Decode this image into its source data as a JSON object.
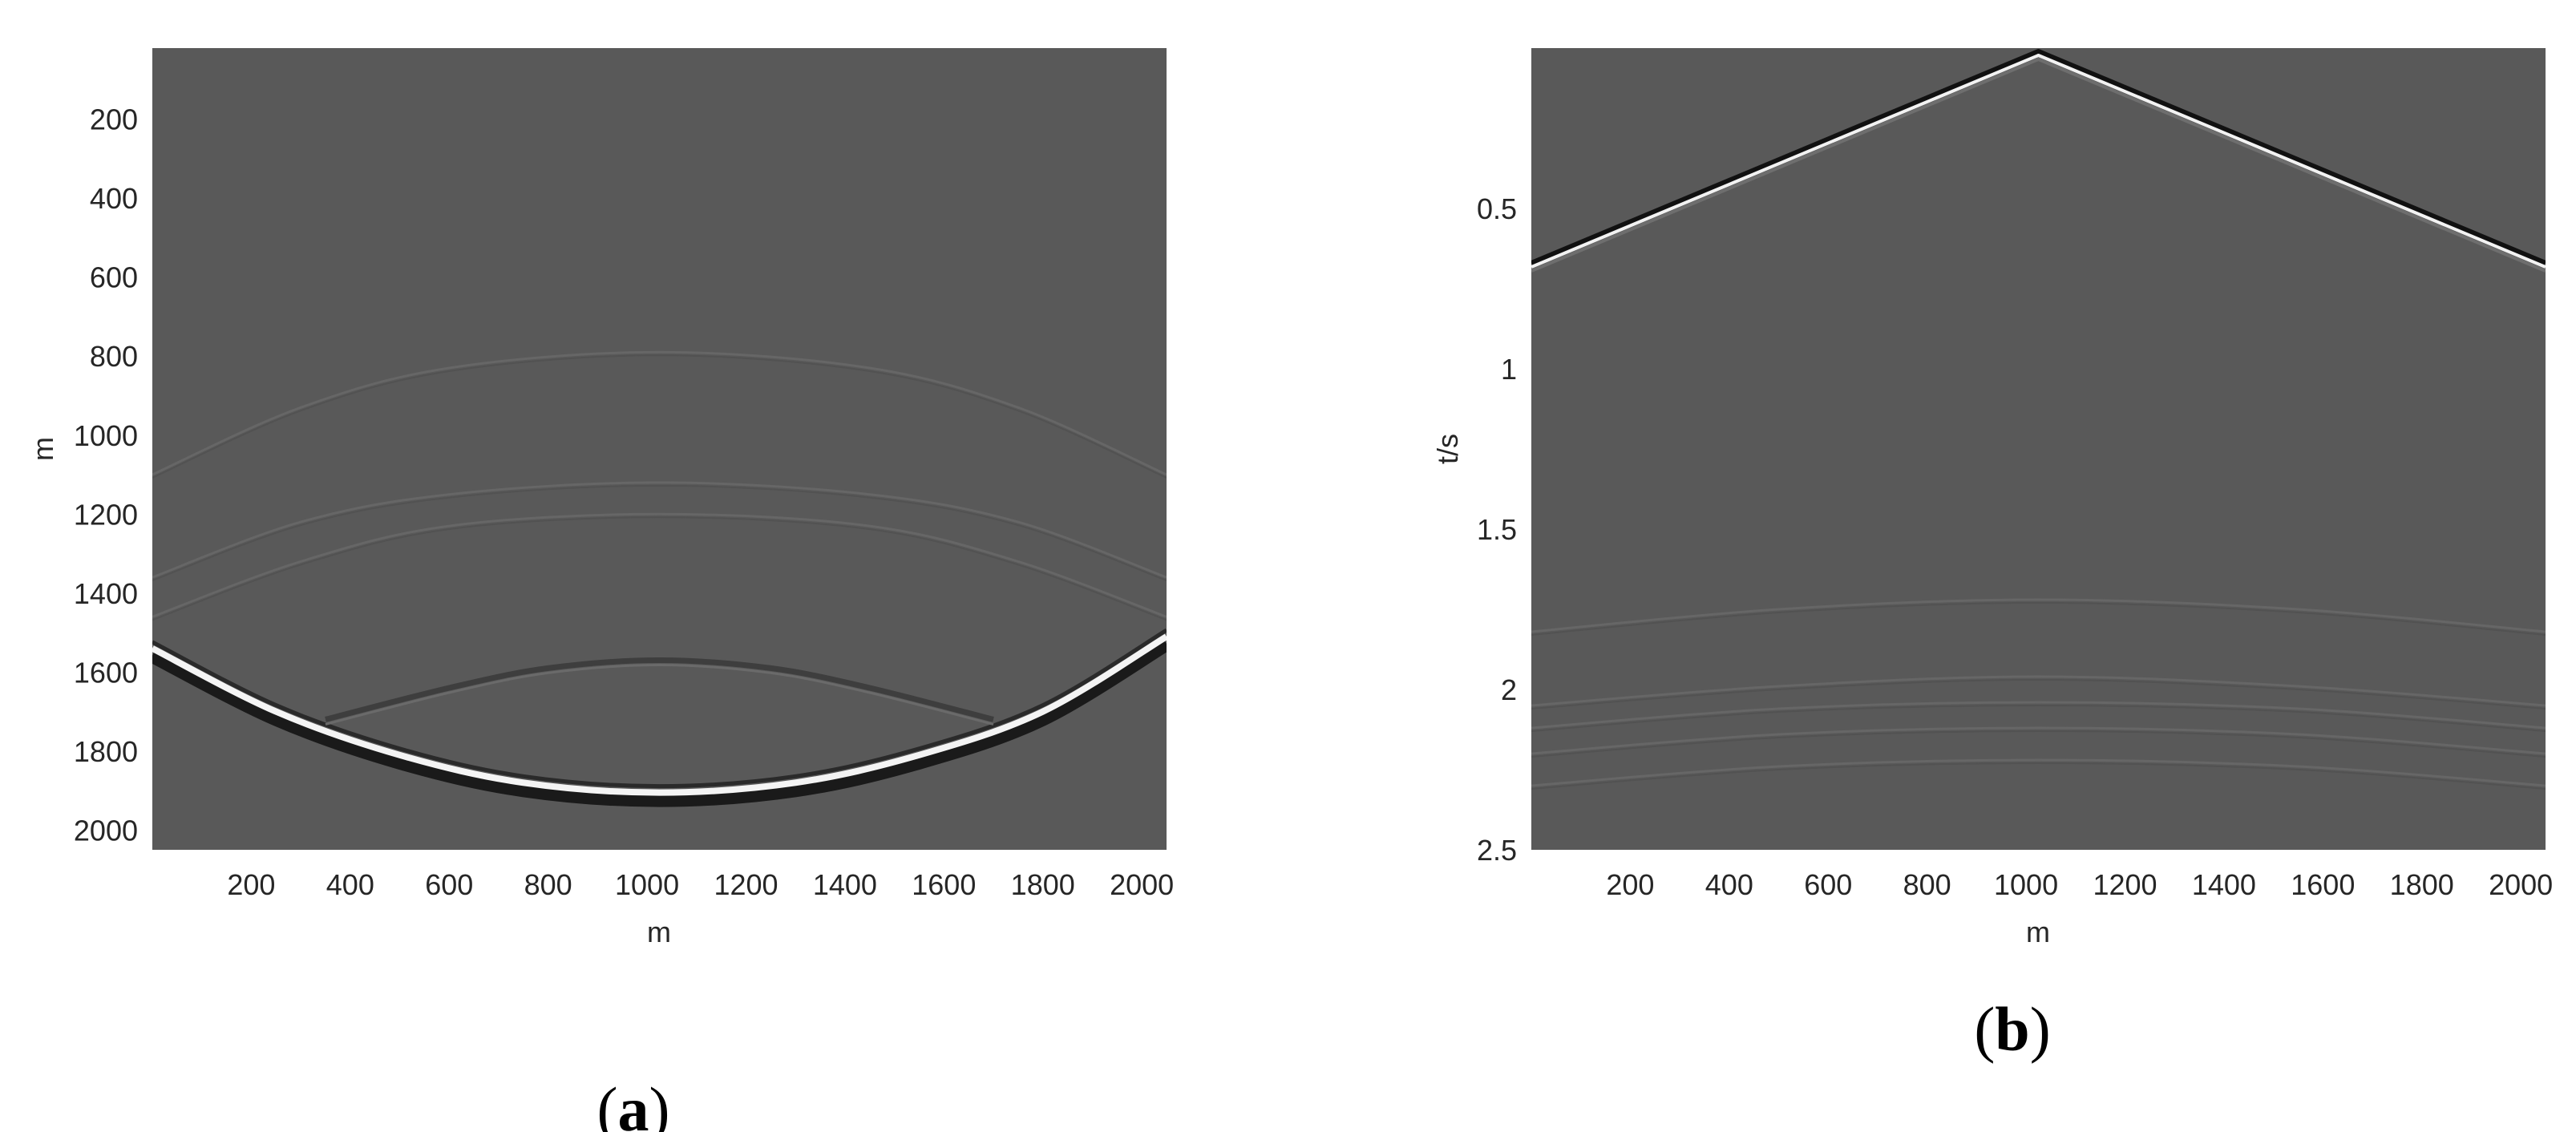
{
  "chart_data": [
    {
      "type": "heatmap",
      "panel_label": "a",
      "xlabel": "m",
      "ylabel": "m",
      "x_ticks": [
        200,
        400,
        600,
        800,
        1000,
        1200,
        1400,
        1600,
        1800,
        2000
      ],
      "y_ticks": [
        200,
        400,
        600,
        800,
        1000,
        1200,
        1400,
        1600,
        1800,
        2000
      ],
      "xlim": [
        0,
        2050
      ],
      "ylim": [
        20,
        2050
      ],
      "y_direction": "down",
      "background_color": "#595959",
      "events": [
        {
          "kind": "wavefront",
          "strength": "strong",
          "x": [
            0,
            250,
            500,
            750,
            1025,
            1300,
            1550,
            1800,
            2050
          ],
          "y": [
            1540,
            1700,
            1810,
            1880,
            1905,
            1880,
            1810,
            1700,
            1510
          ]
        },
        {
          "kind": "reflection",
          "strength": "medium",
          "x": [
            350,
            600,
            800,
            1025,
            1250,
            1450,
            1700
          ],
          "y": [
            1720,
            1640,
            1590,
            1570,
            1590,
            1640,
            1720
          ]
        },
        {
          "kind": "reflection",
          "strength": "faint",
          "x": [
            0,
            300,
            600,
            1025,
            1450,
            1750,
            2050
          ],
          "y": [
            1460,
            1320,
            1230,
            1200,
            1230,
            1320,
            1460
          ]
        },
        {
          "kind": "reflection",
          "strength": "faint",
          "x": [
            0,
            300,
            600,
            1025,
            1450,
            1750,
            2050
          ],
          "y": [
            1360,
            1220,
            1150,
            1120,
            1150,
            1220,
            1360
          ]
        },
        {
          "kind": "reflection",
          "strength": "faint",
          "x": [
            0,
            300,
            600,
            1025,
            1450,
            1750,
            2050
          ],
          "y": [
            1100,
            930,
            830,
            790,
            830,
            930,
            1100
          ]
        }
      ]
    },
    {
      "type": "heatmap",
      "panel_label": "b",
      "xlabel": "m",
      "ylabel": "t/s",
      "x_ticks": [
        200,
        400,
        600,
        800,
        1000,
        1200,
        1400,
        1600,
        1800,
        2000
      ],
      "y_ticks": [
        0.5,
        1,
        1.5,
        2,
        2.5
      ],
      "xlim": [
        0,
        2050
      ],
      "ylim": [
        0,
        2.5
      ],
      "y_direction": "down",
      "background_color": "#595959",
      "events": [
        {
          "kind": "direct-wave",
          "strength": "strong",
          "x": [
            0,
            1025,
            2050
          ],
          "y": [
            0.68,
            0.02,
            0.68
          ]
        },
        {
          "kind": "reflection",
          "strength": "faint",
          "x": [
            0,
            500,
            1025,
            1550,
            2050
          ],
          "y": [
            1.82,
            1.75,
            1.72,
            1.75,
            1.82
          ]
        },
        {
          "kind": "reflection",
          "strength": "faint",
          "x": [
            0,
            500,
            1025,
            1550,
            2050
          ],
          "y": [
            2.05,
            1.99,
            1.96,
            1.99,
            2.05
          ]
        },
        {
          "kind": "reflection",
          "strength": "faint",
          "x": [
            0,
            500,
            1025,
            1550,
            2050
          ],
          "y": [
            2.12,
            2.06,
            2.04,
            2.06,
            2.12
          ]
        },
        {
          "kind": "reflection",
          "strength": "faint",
          "x": [
            0,
            500,
            1025,
            1550,
            2050
          ],
          "y": [
            2.2,
            2.14,
            2.12,
            2.14,
            2.2
          ]
        },
        {
          "kind": "reflection",
          "strength": "faint",
          "x": [
            0,
            500,
            1025,
            1550,
            2050
          ],
          "y": [
            2.3,
            2.24,
            2.22,
            2.24,
            2.3
          ]
        }
      ]
    }
  ]
}
